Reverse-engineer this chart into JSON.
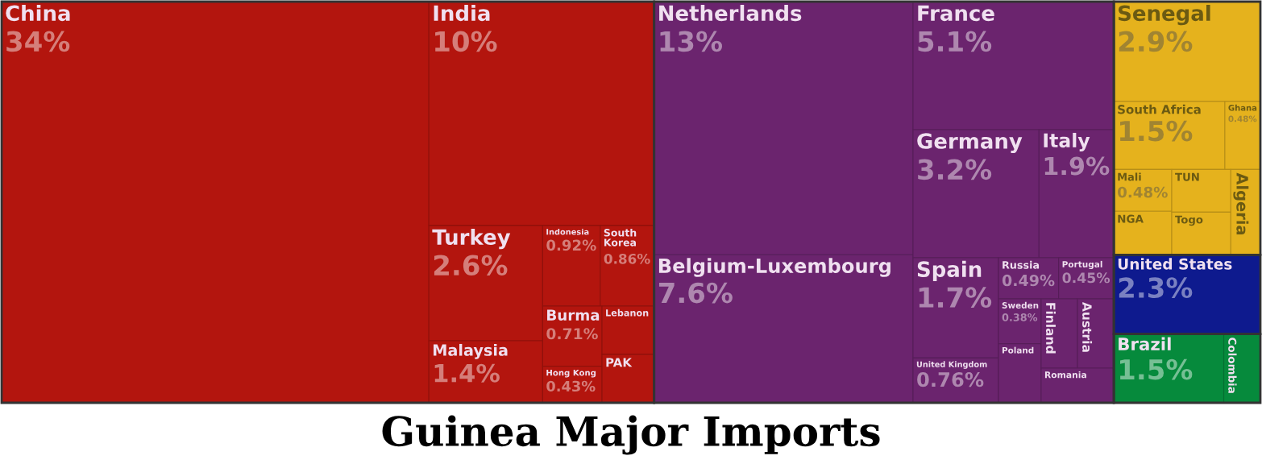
{
  "chart_data": {
    "type": "other",
    "title": "Guinea Major Imports",
    "categories": [
      "China",
      "India",
      "Turkey",
      "Malaysia",
      "Indonesia",
      "South Korea",
      "Burma",
      "Hong Kong",
      "Lebanon",
      "PAK",
      "Netherlands",
      "Belgium-Luxembourg",
      "France",
      "Germany",
      "Italy",
      "Spain",
      "United Kingdom",
      "Russia",
      "Portugal",
      "Sweden",
      "Poland",
      "Finland",
      "Austria",
      "Romania",
      "Senegal",
      "South Africa",
      "Ghana",
      "Mali",
      "NGA",
      "TUN",
      "Togo",
      "Algeria",
      "United States",
      "Brazil",
      "Colombia"
    ],
    "values": [
      34,
      10,
      2.6,
      1.4,
      0.92,
      0.86,
      0.71,
      0.43,
      null,
      null,
      13,
      7.6,
      5.1,
      3.2,
      1.9,
      1.7,
      0.76,
      0.49,
      0.45,
      0.38,
      null,
      null,
      null,
      null,
      2.9,
      1.5,
      0.48,
      0.48,
      null,
      null,
      null,
      null,
      2.3,
      1.5,
      null
    ],
    "value_labels": [
      "34%",
      "10%",
      "2.6%",
      "1.4%",
      "0.92%",
      "0.86%",
      "0.71%",
      "0.43%",
      null,
      null,
      "13%",
      "7.6%",
      "5.1%",
      "3.2%",
      "1.9%",
      "1.7%",
      "0.76%",
      "0.49%",
      "0.45%",
      "0.38%",
      null,
      null,
      null,
      null,
      "2.9%",
      "1.5%",
      "0.48%",
      "0.48%",
      null,
      null,
      null,
      null,
      "2.3%",
      "1.5%",
      null
    ],
    "colors": [
      "#b3150e",
      "#b3150e",
      "#b3150e",
      "#b3150e",
      "#b3150e",
      "#b3150e",
      "#b3150e",
      "#b3150e",
      "#b3150e",
      "#b3150e",
      "#6b246e",
      "#6b246e",
      "#6b246e",
      "#6b246e",
      "#6b246e",
      "#6b246e",
      "#6b246e",
      "#6b246e",
      "#6b246e",
      "#6b246e",
      "#6b246e",
      "#6b246e",
      "#6b246e",
      "#6b246e",
      "#e5b21d",
      "#e5b21d",
      "#e5b21d",
      "#e5b21d",
      "#e5b21d",
      "#e5b21d",
      "#e5b21d",
      "#e5b21d",
      "#0e1a8e",
      "#068a3c",
      "#068a3c"
    ]
  }
}
